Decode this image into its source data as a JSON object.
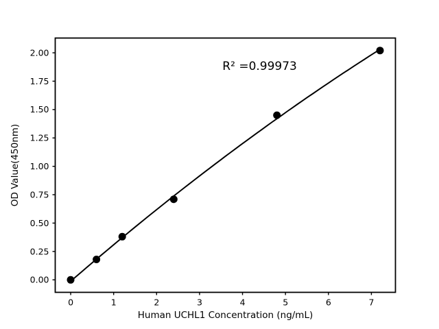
{
  "figure": {
    "background": "#ffffff"
  },
  "chart_data": {
    "type": "scatter",
    "title": "",
    "xlabel": "Human UCHL1 Concentration (ng/mL)",
    "ylabel": "OD Value(450nm)",
    "x": [
      0,
      0.6,
      1.2,
      2.4,
      4.8,
      7.2
    ],
    "y": [
      0.0,
      0.18,
      0.38,
      0.71,
      1.45,
      2.02
    ],
    "fit_curve": {
      "type": "quadratic",
      "a": -0.00609,
      "b": 0.32752,
      "c": -0.01233,
      "x_start": 0,
      "x_end": 7.2
    },
    "annotation": {
      "text": "R² =0.99973",
      "x": 4.4,
      "y": 1.85
    },
    "x_ticks": [
      0,
      1,
      2,
      3,
      4,
      5,
      6,
      7
    ],
    "x_tick_labels": [
      "0",
      "1",
      "2",
      "3",
      "4",
      "5",
      "6",
      "7"
    ],
    "y_ticks": [
      0.0,
      0.25,
      0.5,
      0.75,
      1.0,
      1.25,
      1.5,
      1.75,
      2.0
    ],
    "y_tick_labels": [
      "0.00",
      "0.25",
      "0.50",
      "0.75",
      "1.00",
      "1.25",
      "1.50",
      "1.75",
      "2.00"
    ],
    "xlim": [
      -0.36,
      7.56
    ],
    "ylim": [
      -0.11,
      2.13
    ],
    "grid": false,
    "legend": "none",
    "colors": {
      "line": "#000000",
      "marker": "#000000",
      "text": "#000000",
      "background": "#ffffff"
    }
  }
}
